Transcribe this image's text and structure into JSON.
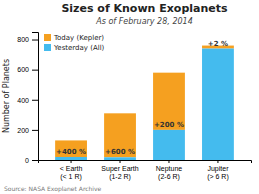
{
  "chart_data": {
    "type": "bar",
    "stacked": true,
    "title": "Sizes of Known Exoplanets",
    "subtitle": "As of February 28, 2014",
    "ylabel": "Number of Planets",
    "source": "Source: NASA Exoplanet Archive",
    "categories": [
      "< Earth\n(< 1 R)",
      "Super Earth\n(1-2 R)",
      "Neptune\n(2-6 R)",
      "Jupiter\n(> 6 R)"
    ],
    "series": [
      {
        "name": "Today (Kepler)",
        "color": "#f5a020",
        "values": [
          110,
          292,
          380,
          20
        ]
      },
      {
        "name": "Yesterday (All)",
        "color": "#44bbee",
        "values": [
          20,
          18,
          200,
          740
        ]
      }
    ],
    "annotations": [
      "+400 %",
      "+600 %",
      "+200 %",
      "+2 %"
    ],
    "ylim": [
      0,
      850
    ],
    "yticks": [
      0,
      200,
      400,
      600,
      800
    ],
    "legend": "upper left",
    "grid": false
  }
}
